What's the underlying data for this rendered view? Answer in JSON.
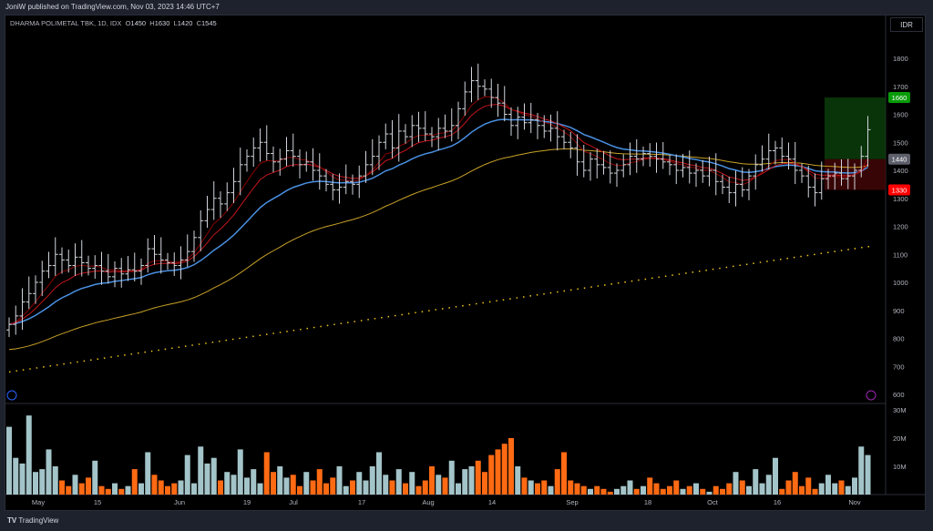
{
  "header": {
    "publisher": "JoniW published on TradingView.com, Nov 03, 2023 14:46 UTC+7"
  },
  "legend": {
    "symbol": "DHARMA POLIMETAL TBK, 1D, IDX",
    "o_label": "O",
    "o": "1450",
    "h_label": "H",
    "h": "1630",
    "l_label": "L",
    "l": "1420",
    "c_label": "C",
    "c": "1545"
  },
  "currency": "IDR",
  "footer": {
    "brand": "TradingView",
    "logo": "TV"
  },
  "colors": {
    "up_volume": "#a3c4c8",
    "down_volume": "#ff6a13",
    "bars": "#d1d4dc",
    "ema_fast": "#8b0000",
    "ema_mid": "#c4161c",
    "ema_blue": "#4a90e2",
    "ema_gold": "#c9a227",
    "ma_dotted": "#f0c419",
    "target": "#089981",
    "stop": "#f23645"
  },
  "chart_data": {
    "type": "bar",
    "price_ticks": [
      600,
      700,
      800,
      900,
      1000,
      1100,
      1200,
      1300,
      1400,
      1500,
      1600,
      1700,
      1800
    ],
    "volume_ticks": [
      "10M",
      "20M",
      "30M"
    ],
    "ylim": [
      600,
      1800
    ],
    "time_labels": [
      "May",
      "15",
      "Jun",
      "19",
      "Jul",
      "17",
      "Aug",
      "14",
      "Sep",
      "18",
      "Oct",
      "16",
      "Nov"
    ],
    "close": [
      850,
      880,
      930,
      960,
      1000,
      1040,
      1060,
      1100,
      1080,
      1060,
      1090,
      1070,
      1050,
      1060,
      1040,
      1020,
      1050,
      1030,
      1045,
      1040,
      1060,
      1120,
      1100,
      1080,
      1070,
      1060,
      1080,
      1110,
      1160,
      1220,
      1260,
      1300,
      1280,
      1320,
      1360,
      1420,
      1450,
      1480,
      1500,
      1460,
      1430,
      1440,
      1470,
      1450,
      1420,
      1430,
      1400,
      1380,
      1350,
      1330,
      1340,
      1360,
      1350,
      1380,
      1420,
      1450,
      1500,
      1530,
      1480,
      1540,
      1520,
      1560,
      1550,
      1530,
      1520,
      1550,
      1540,
      1560,
      1620,
      1680,
      1720,
      1700,
      1690,
      1660,
      1640,
      1600,
      1560,
      1590,
      1570,
      1580,
      1560,
      1540,
      1550,
      1520,
      1500,
      1480,
      1430,
      1400,
      1440,
      1420,
      1410,
      1390,
      1400,
      1420,
      1450,
      1440,
      1460,
      1450,
      1440,
      1430,
      1420,
      1400,
      1410,
      1390,
      1400,
      1380,
      1400,
      1360,
      1340,
      1320,
      1350,
      1330,
      1380,
      1420,
      1440,
      1470,
      1480,
      1450,
      1440,
      1400,
      1380,
      1340,
      1320,
      1370,
      1380,
      1390,
      1370,
      1380,
      1400,
      1450,
      1545
    ],
    "volume_m": [
      24,
      13,
      11,
      28,
      8,
      9,
      16,
      10,
      5,
      3,
      7,
      4,
      6,
      12,
      3,
      2,
      4,
      2,
      3,
      9,
      4,
      15,
      7,
      5,
      3,
      4,
      5,
      14,
      4,
      17,
      11,
      13,
      5,
      8,
      7,
      16,
      6,
      9,
      4,
      15,
      8,
      10,
      6,
      7,
      3,
      8,
      5,
      9,
      4,
      6,
      10,
      3,
      5,
      8,
      5,
      10,
      15,
      7,
      5,
      9,
      4,
      8,
      3,
      5,
      10,
      7,
      6,
      12,
      4,
      9,
      10,
      12,
      8,
      14,
      16,
      18,
      20,
      10,
      6,
      5,
      4,
      5,
      3,
      9,
      15,
      5,
      4,
      3,
      2,
      3,
      2,
      1,
      2,
      3,
      5,
      2,
      3,
      6,
      4,
      2,
      3,
      5,
      2,
      3,
      4,
      2,
      1,
      3,
      2,
      4,
      8,
      5,
      3,
      9,
      4,
      7,
      13,
      2,
      5,
      8,
      3,
      6,
      2,
      4,
      7,
      4,
      5,
      3,
      6,
      17,
      14
    ],
    "ma200_range": [
      680,
      1130
    ],
    "position": {
      "entry": 1440,
      "target": 1660,
      "stop": 1330,
      "entry_label": "1440",
      "target_label": "1660",
      "stop_label": "1330"
    }
  }
}
